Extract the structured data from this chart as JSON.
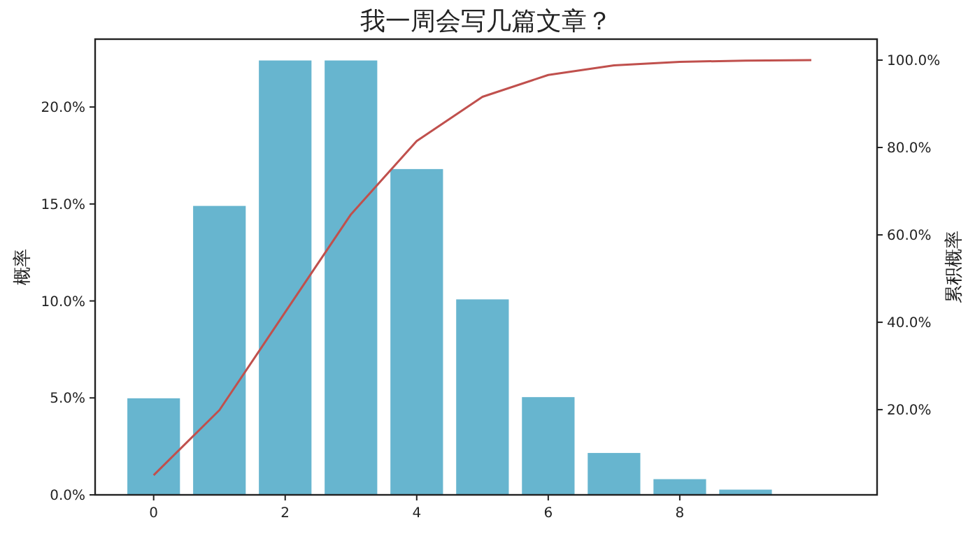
{
  "chart_data": {
    "type": "bar",
    "title": "我一周会写几篇文章？",
    "ylabel": "概率",
    "y2label": "累积概率",
    "x": [
      0,
      1,
      2,
      3,
      4,
      5,
      6,
      7,
      8,
      9,
      10
    ],
    "xlim": [
      -0.89,
      11
    ],
    "xticks": [
      0,
      2,
      4,
      6,
      8
    ],
    "ylim": [
      0,
      0.235
    ],
    "yticks": [
      {
        "value": 0,
        "label": "0.0%"
      },
      {
        "value": 0.05,
        "label": "5.0%"
      },
      {
        "value": 0.1,
        "label": "10.0%"
      },
      {
        "value": 0.15,
        "label": "15.0%"
      },
      {
        "value": 0.2,
        "label": "20.0%"
      }
    ],
    "y2lim": [
      0.005,
      1.048
    ],
    "y2ticks": [
      {
        "value": 0.2,
        "label": "20.0%"
      },
      {
        "value": 0.4,
        "label": "40.0%"
      },
      {
        "value": 0.6,
        "label": "60.0%"
      },
      {
        "value": 0.8,
        "label": "80.0%"
      },
      {
        "value": 1.0,
        "label": "100.0%"
      }
    ],
    "grid": false,
    "series": [
      {
        "color": "#67b5cf",
        "values": [
          0.0498,
          0.149,
          0.224,
          0.224,
          0.168,
          0.1008,
          0.0504,
          0.0216,
          0.0081,
          0.0027,
          null
        ]
      },
      {
        "type": "line",
        "axis": "y2",
        "color": "#c0504d",
        "values": [
          0.05,
          0.199,
          0.423,
          0.647,
          0.815,
          0.916,
          0.966,
          0.988,
          0.996,
          0.999,
          1.0
        ]
      }
    ]
  }
}
